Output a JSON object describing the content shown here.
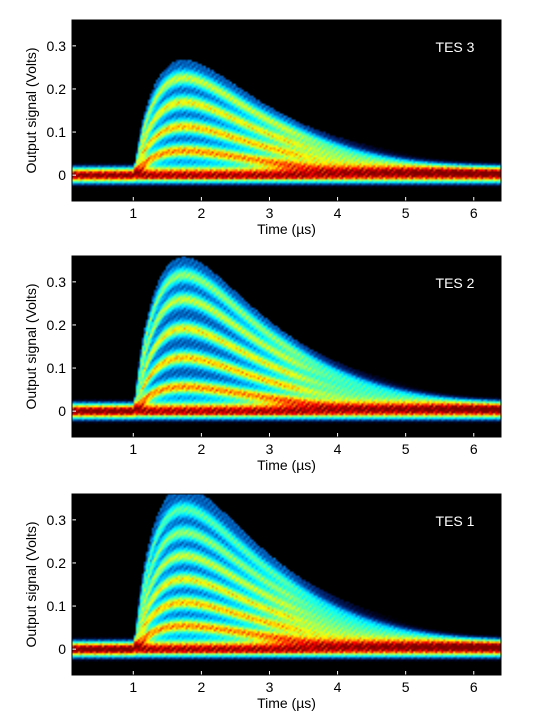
{
  "chart_data": [
    {
      "type": "heatmap",
      "panel_label": "TES 3",
      "xlabel": "Time (µs)",
      "ylabel": "Output signal (Volts)",
      "xlim": [
        0.1,
        6.4
      ],
      "ylim": [
        -0.06,
        0.36
      ],
      "xticks": [
        1,
        2,
        3,
        4,
        5,
        6
      ],
      "yticks": [
        0,
        0.1,
        0.2,
        0.3
      ],
      "ytick_labels": [
        "0",
        "0.1",
        "0.2",
        "0.3"
      ],
      "baseline": 0.0,
      "pulse_peak_time": 2.2,
      "band_peaks": [
        0.05,
        0.1,
        0.15,
        0.2
      ],
      "max_signal": 0.22,
      "colormap": "jet",
      "background": "#000000",
      "label_color": "#ffffff"
    },
    {
      "type": "heatmap",
      "panel_label": "TES 2",
      "xlabel": "Time (µs)",
      "ylabel": "Output signal (Volts)",
      "xlim": [
        0.1,
        6.4
      ],
      "ylim": [
        -0.06,
        0.36
      ],
      "xticks": [
        1,
        2,
        3,
        4,
        5,
        6
      ],
      "yticks": [
        0,
        0.1,
        0.2,
        0.3
      ],
      "ytick_labels": [
        "0",
        "0.1",
        "0.2",
        "0.3"
      ],
      "baseline": 0.0,
      "pulse_peak_time": 2.2,
      "band_peaks": [
        0.05,
        0.11,
        0.17,
        0.23,
        0.28
      ],
      "max_signal": 0.3,
      "colormap": "jet",
      "background": "#000000",
      "label_color": "#ffffff"
    },
    {
      "type": "heatmap",
      "panel_label": "TES 1",
      "xlabel": "Time (µs)",
      "ylabel": "Output signal (Volts)",
      "xlim": [
        0.1,
        6.4
      ],
      "ylim": [
        -0.06,
        0.36
      ],
      "xticks": [
        1,
        2,
        3,
        4,
        5,
        6
      ],
      "yticks": [
        0,
        0.1,
        0.2,
        0.3
      ],
      "ytick_labels": [
        "0",
        "0.1",
        "0.2",
        "0.3"
      ],
      "baseline": 0.0,
      "pulse_peak_time": 2.1,
      "band_peaks": [
        0.05,
        0.1,
        0.15,
        0.2,
        0.25,
        0.3
      ],
      "max_signal": 0.33,
      "colormap": "jet",
      "background": "#000000",
      "label_color": "#ffffff"
    }
  ]
}
